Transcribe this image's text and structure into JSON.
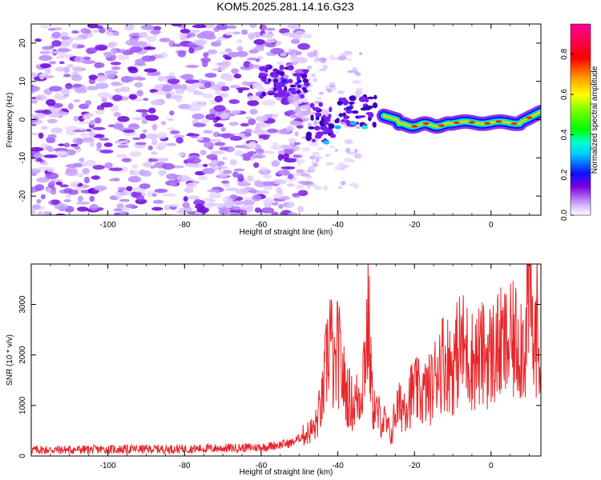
{
  "title": "KOM5.2025.281.14.16.G23",
  "colors": {
    "snr_line": "#e8262a",
    "frame": "#000000",
    "background": "#ffffff"
  },
  "chart_data": [
    {
      "type": "heatmap",
      "name": "spectrogram",
      "title": "KOM5.2025.281.14.16.G23",
      "xlabel": "Height of straight line (km)",
      "ylabel": "Frequency (Hz)",
      "xlim": [
        -120,
        13
      ],
      "ylim": [
        -25,
        25
      ],
      "xticks": [
        -100,
        -80,
        -60,
        -40,
        -20,
        0
      ],
      "yticks": [
        -20,
        -10,
        0,
        10,
        20
      ],
      "colorbar": {
        "label": "Normalized spectral amplitude",
        "range": [
          0,
          0.95
        ],
        "ticks": [
          "0.0",
          "0.2",
          "0.4",
          "0.6",
          "0.8"
        ],
        "tick_values": [
          0.0,
          0.2,
          0.4,
          0.6,
          0.8
        ]
      },
      "features": [
        {
          "description": "diffuse low-amplitude noise",
          "x_range": [
            -120,
            -50
          ],
          "freq_range": [
            -25,
            25
          ],
          "amplitude": 0.08
        },
        {
          "description": "onset cluster",
          "x_range": [
            -60,
            -48
          ],
          "freq_range": [
            6,
            14
          ],
          "amplitude": 0.15
        },
        {
          "description": "transition cluster",
          "x_range": [
            -48,
            -30
          ],
          "freq_range": [
            -8,
            6
          ],
          "amplitude": 0.25
        },
        {
          "description": "carrier trace",
          "x_range": [
            -28,
            13
          ],
          "freq_range": [
            -2,
            3
          ],
          "amplitude": 0.95
        }
      ]
    },
    {
      "type": "line",
      "name": "snr",
      "xlabel": "Height of straight line (km)",
      "ylabel": "SNR (10 * v/v)",
      "xlim": [
        -120,
        13
      ],
      "ylim": [
        0,
        3800
      ],
      "xticks": [
        -100,
        -80,
        -60,
        -40,
        -20,
        0
      ],
      "yticks": [
        0,
        1000,
        2000,
        3000
      ],
      "series": [
        {
          "name": "SNR",
          "color": "#e8262a",
          "x": [
            -120,
            -100,
            -80,
            -60,
            -52,
            -46,
            -44,
            -42,
            -41,
            -40,
            -38,
            -36,
            -34,
            -32,
            -31,
            -30,
            -28,
            -26,
            -25,
            -23,
            -20,
            -18,
            -15,
            -14,
            -12,
            -10,
            -8,
            -5,
            -2,
            0,
            2,
            5,
            7,
            9,
            10,
            11,
            12,
            13
          ],
          "y": [
            120,
            130,
            140,
            170,
            260,
            550,
            1100,
            2500,
            1500,
            2100,
            1300,
            1000,
            1250,
            2700,
            1100,
            850,
            700,
            400,
            900,
            1000,
            1300,
            1200,
            1400,
            1850,
            1900,
            1750,
            2200,
            1900,
            2000,
            2000,
            2150,
            2200,
            2300,
            2250,
            3800,
            2000,
            2600,
            1800
          ]
        }
      ]
    }
  ]
}
